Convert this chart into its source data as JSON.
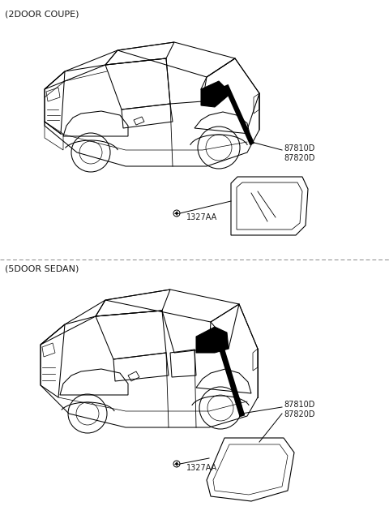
{
  "section1_label": "(2DOOR COUPE)",
  "section2_label": "(5DOOR SEDAN)",
  "part_label1": "87810D\n87820D",
  "part_label2": "87810D\n87820D",
  "fastener_label1": "1327AA",
  "fastener_label2": "1327AA",
  "bg_color": "#ffffff",
  "line_color": "#1a1a1a",
  "text_color": "#1a1a1a",
  "dashed_color": "#888888",
  "section_label_fontsize": 8,
  "part_label_fontsize": 7,
  "fastener_label_fontsize": 7
}
